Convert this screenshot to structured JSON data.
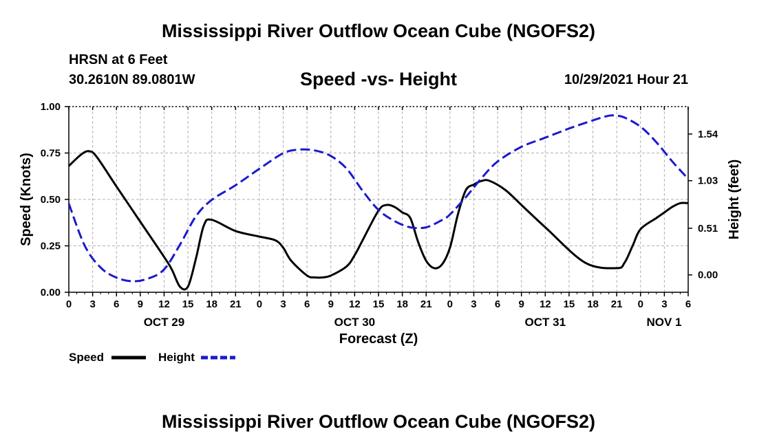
{
  "title": "Mississippi River Outflow Ocean Cube (NGOFS2)",
  "title_repeat": "Mississippi River Outflow Ocean Cube (NGOFS2)",
  "station": "HRSN at 6 Feet",
  "coordinates": "30.2610N  89.0801W",
  "subtitle": "Speed -vs- Height",
  "datetime": "10/29/2021 Hour 21",
  "chart_data": {
    "type": "line",
    "title": "Speed -vs- Height",
    "xlabel": "Forecast (Z)",
    "ylabel": "Speed (Knots)",
    "y2label": "Height (feet)",
    "x_unit": "forecast hours since Oct 29 00Z",
    "xlim": [
      0,
      78
    ],
    "ylim": [
      0,
      1.0
    ],
    "y2lim": [
      -0.19,
      1.84
    ],
    "grid": true,
    "x_tick_labels": [
      "0",
      "3",
      "6",
      "9",
      "12",
      "15",
      "18",
      "21",
      "0",
      "3",
      "6",
      "9",
      "12",
      "15",
      "18",
      "21",
      "0",
      "3",
      "6",
      "9",
      "12",
      "15",
      "18",
      "21",
      "0",
      "3",
      "6"
    ],
    "date_labels": [
      {
        "hour": 12,
        "label": "OCT 29"
      },
      {
        "hour": 36,
        "label": "OCT 30"
      },
      {
        "hour": 60,
        "label": "OCT 31"
      },
      {
        "hour": 78,
        "label": "NOV 1"
      }
    ],
    "y_ticks": [
      0,
      0.25,
      0.5,
      0.75,
      1.0
    ],
    "y_tick_labels": [
      "0.00",
      "0.25",
      "0.50",
      "0.75",
      "1.00"
    ],
    "y2_ticks": [
      0.0,
      0.51,
      1.03,
      1.54
    ],
    "y2_tick_labels": [
      "0.00",
      "0.51",
      "1.03",
      "1.54"
    ],
    "legend": [
      {
        "name": "Speed",
        "color": "#000000",
        "dash": "solid"
      },
      {
        "name": "Height",
        "color": "#1a1acc",
        "dash": "dashed"
      }
    ],
    "series": [
      {
        "name": "Speed",
        "axis": "left",
        "color": "#000000",
        "dash": "solid",
        "x": [
          0,
          1.5,
          2.5,
          3.5,
          6,
          9,
          12,
          13,
          14,
          15,
          16,
          17,
          18,
          21,
          24,
          26,
          27,
          28,
          30,
          31,
          32,
          33,
          35,
          36,
          37,
          39,
          40,
          41,
          42,
          43,
          44,
          45,
          46,
          47,
          48,
          49,
          50,
          51,
          52,
          53,
          55,
          57,
          60,
          65,
          69,
          70,
          71,
          72,
          74,
          75,
          76,
          77,
          78
        ],
        "values": [
          0.68,
          0.74,
          0.76,
          0.73,
          0.57,
          0.38,
          0.19,
          0.12,
          0.03,
          0.03,
          0.18,
          0.36,
          0.39,
          0.33,
          0.3,
          0.28,
          0.24,
          0.17,
          0.09,
          0.08,
          0.08,
          0.09,
          0.14,
          0.2,
          0.28,
          0.44,
          0.47,
          0.46,
          0.43,
          0.4,
          0.27,
          0.17,
          0.13,
          0.15,
          0.24,
          0.42,
          0.55,
          0.58,
          0.6,
          0.6,
          0.55,
          0.47,
          0.35,
          0.16,
          0.13,
          0.16,
          0.25,
          0.34,
          0.4,
          0.43,
          0.46,
          0.48,
          0.48
        ]
      },
      {
        "name": "Height",
        "axis": "right",
        "color": "#1a1acc",
        "dash": "dashed",
        "x": [
          0,
          2,
          4,
          6,
          8,
          10,
          12,
          14,
          16,
          18,
          21,
          24,
          27,
          29,
          31,
          33,
          35,
          37,
          39,
          41,
          43,
          45,
          47,
          48,
          50,
          52,
          54,
          57,
          60,
          63,
          66,
          68,
          69,
          70,
          72,
          74,
          76,
          78
        ],
        "values": [
          0.78,
          0.32,
          0.08,
          -0.03,
          -0.07,
          -0.04,
          0.06,
          0.33,
          0.64,
          0.82,
          0.98,
          1.16,
          1.33,
          1.37,
          1.36,
          1.3,
          1.16,
          0.92,
          0.71,
          0.59,
          0.52,
          0.52,
          0.6,
          0.66,
          0.85,
          1.06,
          1.24,
          1.4,
          1.5,
          1.6,
          1.69,
          1.74,
          1.74,
          1.72,
          1.62,
          1.45,
          1.24,
          1.05
        ]
      }
    ]
  }
}
